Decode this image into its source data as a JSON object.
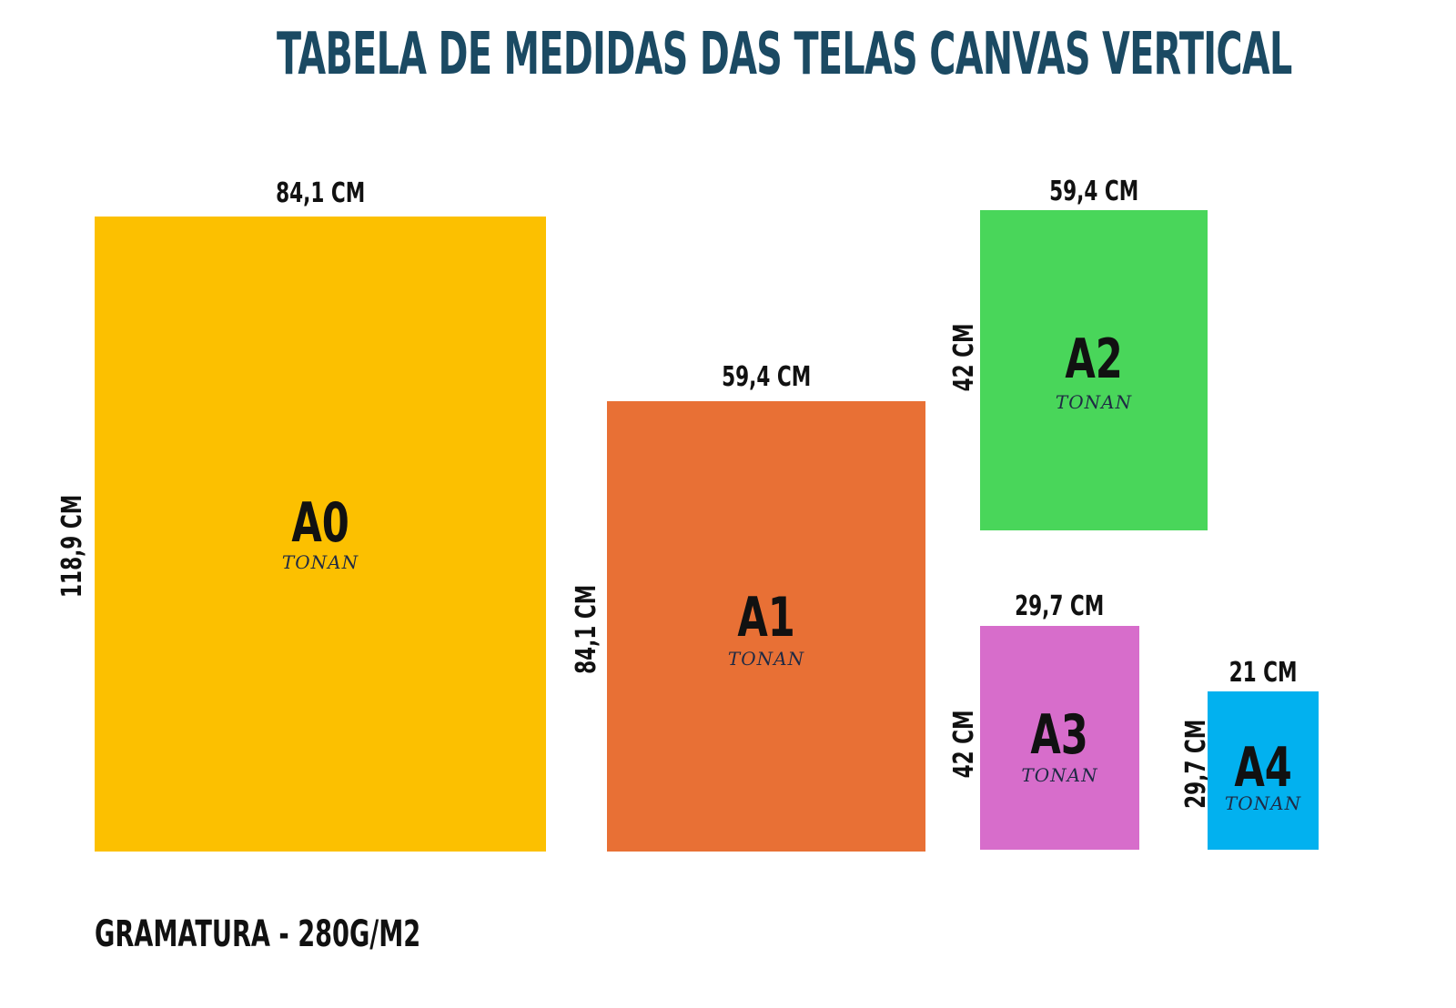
{
  "title": "TABELA DE MEDIDAS DAS TELAS CANVAS VERTICAL",
  "brand_name": "TONAN",
  "footer": "GRAMATURA - 280G/M2",
  "sizes": [
    {
      "label": "A0",
      "width_label": "84,1 CM",
      "height_label": "118,9 CM",
      "width_cm": 84.1,
      "height_cm": 118.9,
      "color": "#fcc000"
    },
    {
      "label": "A1",
      "width_label": "59,4 CM",
      "height_label": "84,1 CM",
      "width_cm": 59.4,
      "height_cm": 84.1,
      "color": "#e87035"
    },
    {
      "label": "A2",
      "width_label": "59,4 CM",
      "height_label": "42 CM",
      "width_cm": 59.4,
      "height_cm": 42,
      "color": "#49d65a"
    },
    {
      "label": "A3",
      "width_label": "29,7 CM",
      "height_label": "42 CM",
      "width_cm": 29.7,
      "height_cm": 42,
      "color": "#d76dcb"
    },
    {
      "label": "A4",
      "width_label": "21 CM",
      "height_label": "29,7 CM",
      "width_cm": 21,
      "height_cm": 29.7,
      "color": "#02b1ef"
    }
  ]
}
